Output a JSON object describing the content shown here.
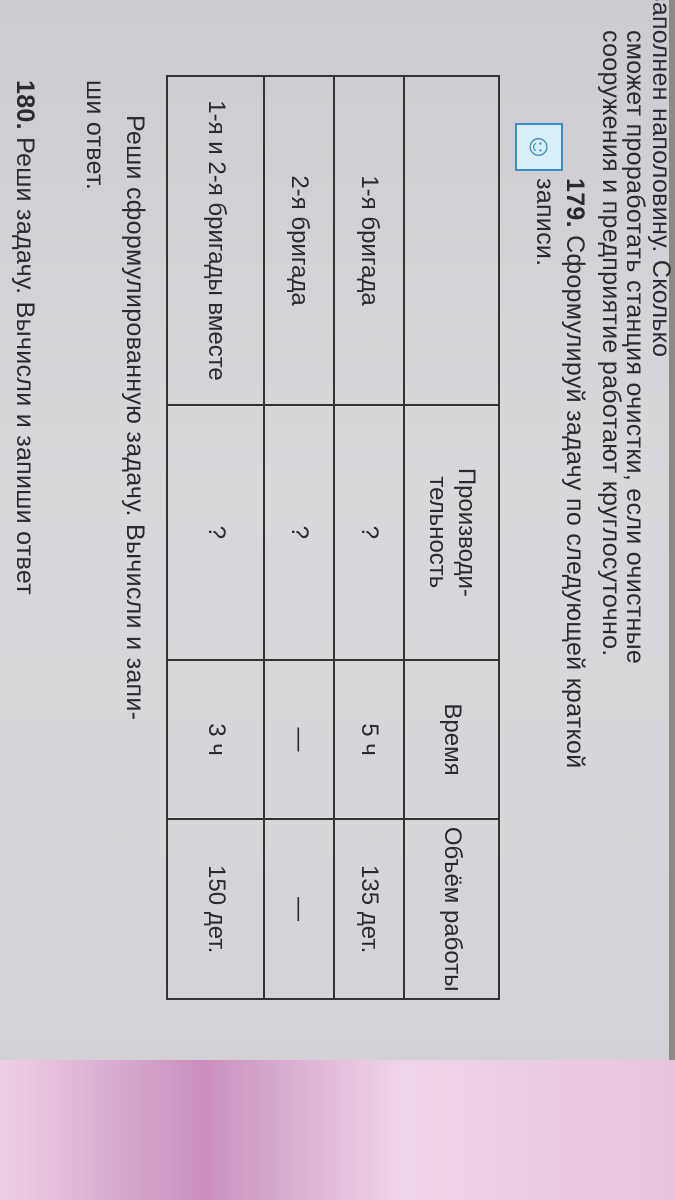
{
  "prev_task": {
    "line1": "заполнен наполовину. Сколько",
    "line2": "сможет проработать станция очистки, если очистные",
    "line3": "сооружения и предприятие работают круглосуточно."
  },
  "task179": {
    "number": "179.",
    "text_line1": "Сформулируй задачу по следующей краткой",
    "text_line2": "записи.",
    "icon": "thinking-child-icon",
    "table": {
      "headers": [
        "",
        "Производи-тельность",
        "Время",
        "Объём работы"
      ],
      "rows": [
        [
          "1-я бригада",
          "?",
          "5 ч",
          "135 дет."
        ],
        [
          "2-я бригада",
          "?",
          "—",
          "—"
        ],
        [
          "1-я и 2-я бригады вместе",
          "?",
          "3 ч",
          "150 дет."
        ]
      ]
    },
    "after_line1": "Реши сформулированную задачу. Вычисли и запи-",
    "after_line2": "ши ответ."
  },
  "task180": {
    "number": "180.",
    "text": "Реши задачу. Вычисли и запиши ответ"
  }
}
